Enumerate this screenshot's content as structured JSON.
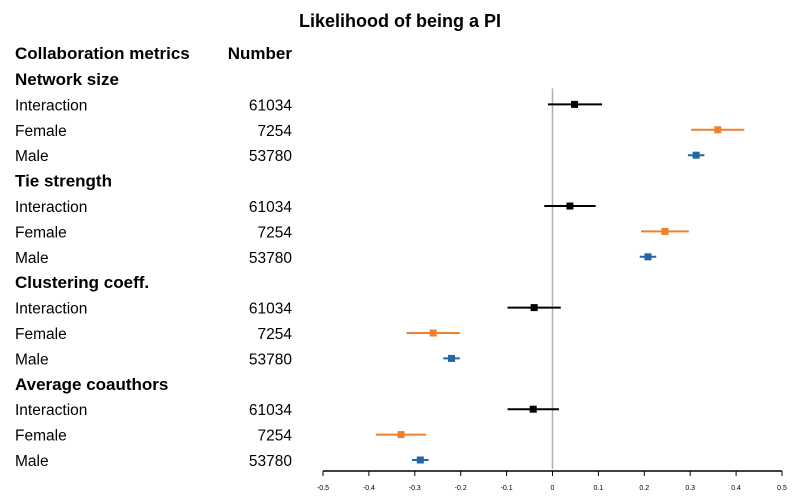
{
  "chart_data": {
    "type": "forest",
    "title": "Likelihood of being a PI",
    "columns": {
      "label": "Collaboration metrics",
      "number": "Number"
    },
    "xlim": [
      -0.5,
      0.5
    ],
    "xticks": [
      -0.5,
      -0.4,
      -0.3,
      -0.2,
      -0.1,
      0,
      0.1,
      0.2,
      0.3,
      0.4,
      0.5
    ],
    "xtick_labels": [
      "-0.5",
      "-0.4",
      "-0.3",
      "-0.2",
      "-0.1",
      "0",
      "0.1",
      "0.2",
      "0.3",
      "0.4",
      "0.5"
    ],
    "reference_line": 0,
    "colors": {
      "Interaction": "#000000",
      "Female": "#f07f2e",
      "Male": "#2166a5",
      "reference": "#b0b0b0"
    },
    "groups": [
      {
        "name": "Network size",
        "rows": [
          {
            "label": "Interaction",
            "number": "61034",
            "estimate": 0.048,
            "lower": -0.01,
            "upper": 0.108
          },
          {
            "label": "Female",
            "number": "7254",
            "estimate": 0.36,
            "lower": 0.302,
            "upper": 0.418
          },
          {
            "label": "Male",
            "number": "53780",
            "estimate": 0.313,
            "lower": 0.295,
            "upper": 0.331
          }
        ]
      },
      {
        "name": "Tie strength",
        "rows": [
          {
            "label": "Interaction",
            "number": "61034",
            "estimate": 0.038,
            "lower": -0.018,
            "upper": 0.094
          },
          {
            "label": "Female",
            "number": "7254",
            "estimate": 0.245,
            "lower": 0.193,
            "upper": 0.297
          },
          {
            "label": "Male",
            "number": "53780",
            "estimate": 0.208,
            "lower": 0.19,
            "upper": 0.226
          }
        ]
      },
      {
        "name": "Clustering coeff.",
        "rows": [
          {
            "label": "Interaction",
            "number": "61034",
            "estimate": -0.04,
            "lower": -0.098,
            "upper": 0.018
          },
          {
            "label": "Female",
            "number": "7254",
            "estimate": -0.26,
            "lower": -0.318,
            "upper": -0.202
          },
          {
            "label": "Male",
            "number": "53780",
            "estimate": -0.22,
            "lower": -0.238,
            "upper": -0.202
          }
        ]
      },
      {
        "name": "Average coauthors",
        "rows": [
          {
            "label": "Interaction",
            "number": "61034",
            "estimate": -0.042,
            "lower": -0.098,
            "upper": 0.014
          },
          {
            "label": "Female",
            "number": "7254",
            "estimate": -0.33,
            "lower": -0.385,
            "upper": -0.275
          },
          {
            "label": "Male",
            "number": "53780",
            "estimate": -0.288,
            "lower": -0.306,
            "upper": -0.27
          }
        ]
      }
    ]
  }
}
